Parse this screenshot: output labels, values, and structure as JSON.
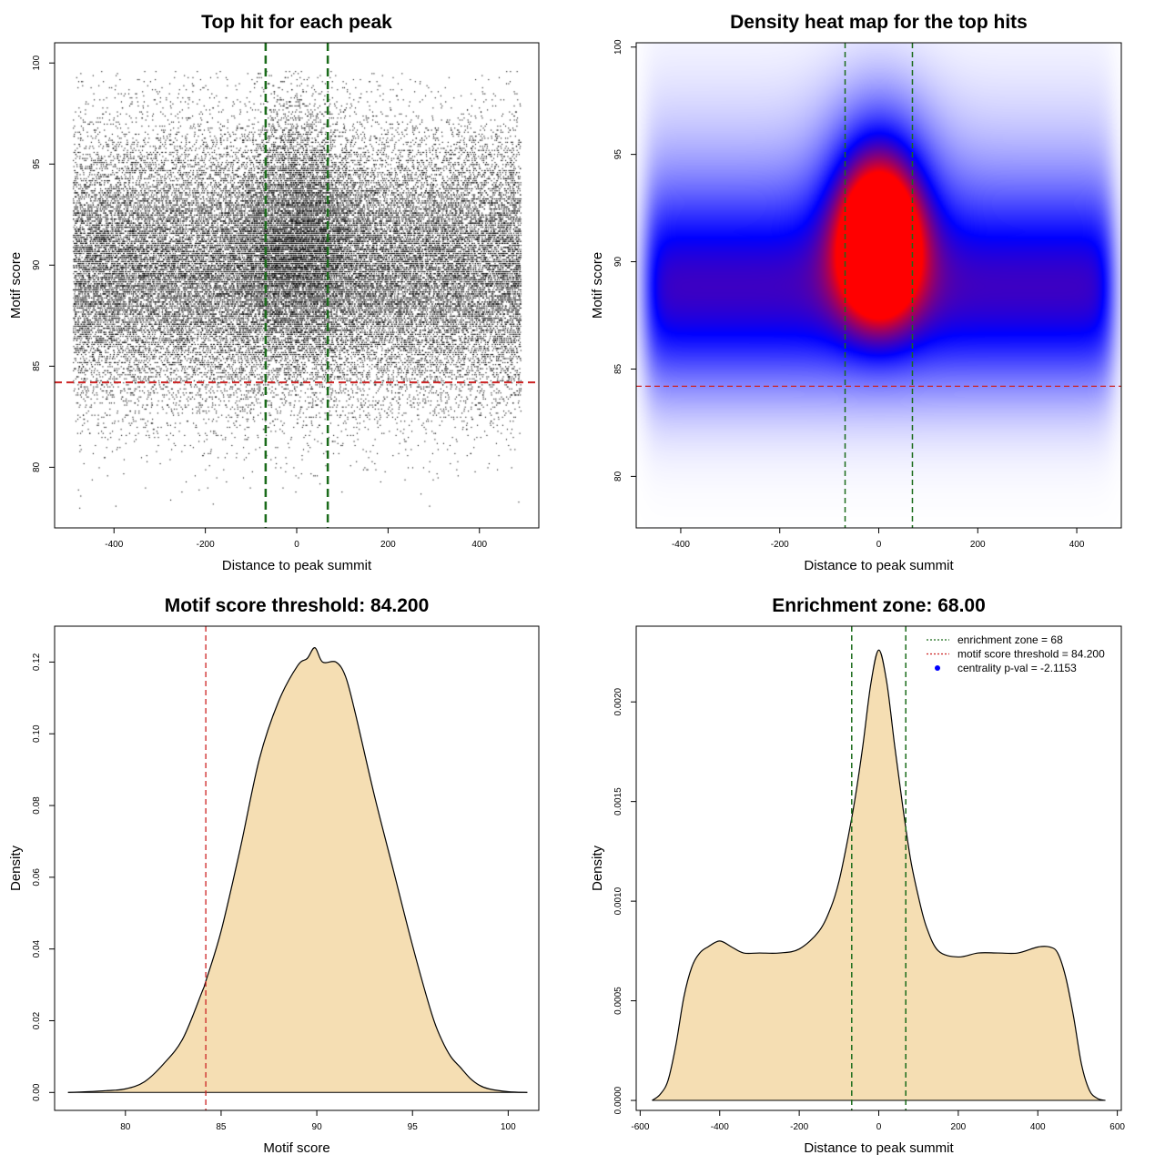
{
  "colors": {
    "enrichment_line": "#1a6b1a",
    "threshold_line": "#cc2222",
    "density_fill": "#f5deb3",
    "curve": "#000000",
    "points": "#000000",
    "heat_low": "#ffffff",
    "heat_mid": "#0000ff",
    "heat_high": "#ff0000",
    "legend_pval_point": "#0000ff"
  },
  "chart_data": [
    {
      "type": "scatter",
      "title": "Top hit for each peak",
      "xlabel": "Distance to peak summit",
      "ylabel": "Motif score",
      "xlim": [
        -530,
        530
      ],
      "ylim": [
        77,
        101
      ],
      "xticks": [
        -400,
        -200,
        0,
        200,
        400
      ],
      "yticks": [
        80,
        85,
        90,
        95,
        100
      ],
      "point_cloud": {
        "x_range": [
          -490,
          490
        ],
        "score_mean": 89.9,
        "score_sd": 3.3,
        "central_excess_sd": 70,
        "approx_points": 45000
      },
      "vlines": [
        -68,
        68
      ],
      "hline": 84.2
    },
    {
      "type": "heatmap",
      "title": "Density heat map for the top hits",
      "xlabel": "Distance to peak summit",
      "ylabel": "Motif score",
      "xlim": [
        -490,
        490
      ],
      "ylim": [
        77.6,
        100.2
      ],
      "xticks": [
        -400,
        -200,
        0,
        200,
        400
      ],
      "yticks": [
        80,
        85,
        90,
        95,
        100
      ],
      "color_scale": [
        "white",
        "blue",
        "red"
      ],
      "density_peak": {
        "x": 0,
        "y": 90.8
      },
      "background_band_center": 88.5,
      "vlines": [
        -68,
        68
      ],
      "hline": 84.2
    },
    {
      "type": "area",
      "title": "Motif score threshold: 84.200",
      "xlabel": "Motif score",
      "ylabel": "Density",
      "xlim": [
        76.3,
        101.6
      ],
      "ylim": [
        -0.005,
        0.13
      ],
      "xticks": [
        80,
        85,
        90,
        95,
        100
      ],
      "yticks": [
        0.0,
        0.02,
        0.04,
        0.06,
        0.08,
        0.1,
        0.12
      ],
      "ytick_labels": [
        "0.00",
        "0.02",
        "0.04",
        "0.06",
        "0.08",
        "0.10",
        "0.12"
      ],
      "x": [
        77,
        78,
        79,
        80,
        81,
        82,
        83,
        84,
        84.2,
        85,
        86,
        87,
        88,
        89,
        89.5,
        89.9,
        90.3,
        91,
        91.5,
        92,
        93,
        94,
        95,
        96,
        96.5,
        97,
        97.5,
        98,
        98.5,
        99,
        100,
        101
      ],
      "y": [
        0.0,
        0.0002,
        0.0005,
        0.001,
        0.003,
        0.008,
        0.015,
        0.028,
        0.031,
        0.045,
        0.068,
        0.093,
        0.109,
        0.119,
        0.121,
        0.124,
        0.12,
        0.12,
        0.116,
        0.106,
        0.083,
        0.062,
        0.041,
        0.022,
        0.015,
        0.01,
        0.007,
        0.004,
        0.002,
        0.001,
        0.0002,
        0.0
      ],
      "vline": 84.2
    },
    {
      "type": "area",
      "title": "Enrichment zone: 68.00",
      "xlabel": "Distance to peak summit",
      "ylabel": "Density",
      "xlim": [
        -610,
        610
      ],
      "ylim": [
        -5e-05,
        0.00238
      ],
      "xticks": [
        -600,
        -400,
        -200,
        0,
        200,
        400,
        600
      ],
      "yticks": [
        0.0,
        0.0005,
        0.001,
        0.0015,
        0.002
      ],
      "ytick_labels": [
        "0.0000",
        "0.0005",
        "0.0010",
        "0.0015",
        "0.0020"
      ],
      "x": [
        -570,
        -550,
        -530,
        -510,
        -490,
        -470,
        -450,
        -430,
        -400,
        -370,
        -340,
        -300,
        -250,
        -200,
        -150,
        -120,
        -100,
        -80,
        -60,
        -40,
        -20,
        0,
        20,
        40,
        60,
        80,
        100,
        120,
        150,
        200,
        250,
        300,
        350,
        400,
        430,
        450,
        470,
        490,
        510,
        530,
        550,
        570
      ],
      "y": [
        0.0,
        3e-05,
        0.0001,
        0.00028,
        0.00052,
        0.00067,
        0.00074,
        0.00077,
        0.0008,
        0.00077,
        0.00074,
        0.00074,
        0.00074,
        0.00076,
        0.00085,
        0.00097,
        0.0011,
        0.00129,
        0.00151,
        0.00178,
        0.00209,
        0.00226,
        0.0021,
        0.00178,
        0.00148,
        0.00121,
        0.00102,
        0.00087,
        0.00075,
        0.00072,
        0.00074,
        0.00074,
        0.00074,
        0.00077,
        0.00077,
        0.00074,
        0.00062,
        0.00042,
        0.00018,
        5e-05,
        1e-05,
        0.0
      ],
      "vlines": [
        -68,
        68
      ],
      "legend": {
        "position": "top-right",
        "entries": [
          {
            "label": "enrichment zone = 68",
            "style": "dotted-line",
            "color": "#1a6b1a"
          },
          {
            "label": "motif score threshold = 84.200",
            "style": "dotted-line",
            "color": "#cc2222"
          },
          {
            "label": "centrality p-val = -2.1153",
            "style": "point",
            "color": "#0000ff"
          }
        ]
      }
    }
  ]
}
